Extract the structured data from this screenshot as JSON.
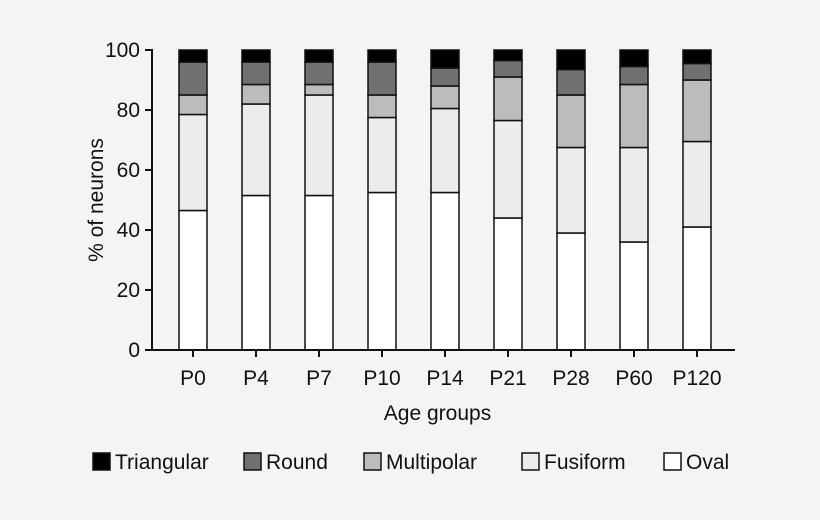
{
  "chart_data": {
    "type": "bar",
    "stacked": true,
    "categories": [
      "P0",
      "P4",
      "P7",
      "P10",
      "P14",
      "P21",
      "P28",
      "P60",
      "P120"
    ],
    "series": [
      {
        "name": "Oval",
        "color": "#ffffff",
        "values": [
          46.5,
          51.5,
          51.5,
          52.5,
          52.5,
          44.0,
          39.0,
          36.0,
          41.0
        ]
      },
      {
        "name": "Fusiform",
        "color": "#ececec",
        "values": [
          32.0,
          30.5,
          33.5,
          25.0,
          28.0,
          32.5,
          28.5,
          31.5,
          28.5
        ]
      },
      {
        "name": "Multipolar",
        "color": "#bcbcbc",
        "values": [
          6.5,
          6.5,
          3.5,
          7.5,
          7.5,
          14.5,
          17.5,
          21.0,
          20.5
        ]
      },
      {
        "name": "Round",
        "color": "#707070",
        "values": [
          11.0,
          7.5,
          7.5,
          11.0,
          6.0,
          5.5,
          8.5,
          6.0,
          5.5
        ]
      },
      {
        "name": "Triangular",
        "color": "#000000",
        "values": [
          4.0,
          4.0,
          4.0,
          4.0,
          6.0,
          3.5,
          6.5,
          5.5,
          4.5
        ]
      }
    ],
    "legend_order": [
      "Triangular",
      "Round",
      "Multipolar",
      "Fusiform",
      "Oval"
    ],
    "legend_placement": "bottom",
    "xlabel": "Age groups",
    "ylabel": "% of neurons",
    "ylim": [
      0,
      100
    ],
    "yticks": [
      0,
      20,
      40,
      60,
      80,
      100
    ],
    "grid": false
  }
}
